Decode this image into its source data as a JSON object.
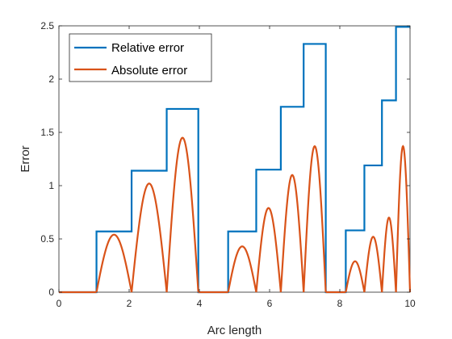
{
  "chart_data": {
    "type": "line",
    "xlabel": "Arc length",
    "ylabel": "Error",
    "xlim": [
      0,
      10
    ],
    "ylim": [
      0,
      2.5
    ],
    "xticks": [
      0,
      2,
      4,
      6,
      8,
      10
    ],
    "yticks": [
      0,
      0.5,
      1,
      1.5,
      2,
      2.5
    ],
    "xtick_labels": [
      "0",
      "2",
      "4",
      "6",
      "8",
      "10"
    ],
    "ytick_labels": [
      "0",
      "0.5",
      "1",
      "1.5",
      "2",
      "2.5"
    ],
    "grid": false,
    "legend_position": "top-left",
    "series": [
      {
        "name": "Relative error",
        "color": "#0072BD",
        "style": "step",
        "x": [
          0,
          1.07,
          1.07,
          2.07,
          2.07,
          3.07,
          3.07,
          3.97,
          3.97,
          4.82,
          4.82,
          5.62,
          5.62,
          6.32,
          6.32,
          6.97,
          6.97,
          7.6,
          7.6,
          8.17,
          8.17,
          8.7,
          8.7,
          9.2,
          9.2,
          9.6,
          9.6,
          10.0
        ],
        "y": [
          0,
          0,
          0.57,
          0.57,
          1.14,
          1.14,
          1.72,
          1.72,
          0,
          0,
          0.57,
          0.57,
          1.15,
          1.15,
          1.74,
          1.74,
          2.33,
          2.33,
          0,
          0,
          0.58,
          0.58,
          1.19,
          1.19,
          1.8,
          1.8,
          2.49,
          2.49
        ]
      },
      {
        "name": "Absolute error",
        "color": "#D95319",
        "style": "arches",
        "baseline_segments": [
          [
            0,
            1.07
          ],
          [
            3.97,
            4.82
          ],
          [
            7.6,
            8.17
          ]
        ],
        "arches": [
          {
            "x0": 1.07,
            "x1": 2.07,
            "peak": 0.54
          },
          {
            "x0": 2.07,
            "x1": 3.07,
            "peak": 1.02
          },
          {
            "x0": 3.07,
            "x1": 3.97,
            "peak": 1.45
          },
          {
            "x0": 4.82,
            "x1": 5.62,
            "peak": 0.43
          },
          {
            "x0": 5.62,
            "x1": 6.32,
            "peak": 0.79
          },
          {
            "x0": 6.32,
            "x1": 6.97,
            "peak": 1.1
          },
          {
            "x0": 6.97,
            "x1": 7.6,
            "peak": 1.37
          },
          {
            "x0": 8.17,
            "x1": 8.7,
            "peak": 0.29
          },
          {
            "x0": 8.7,
            "x1": 9.2,
            "peak": 0.52
          },
          {
            "x0": 9.2,
            "x1": 9.6,
            "peak": 0.7
          },
          {
            "x0": 9.6,
            "x1": 10.0,
            "peak": 1.37
          }
        ]
      }
    ]
  }
}
